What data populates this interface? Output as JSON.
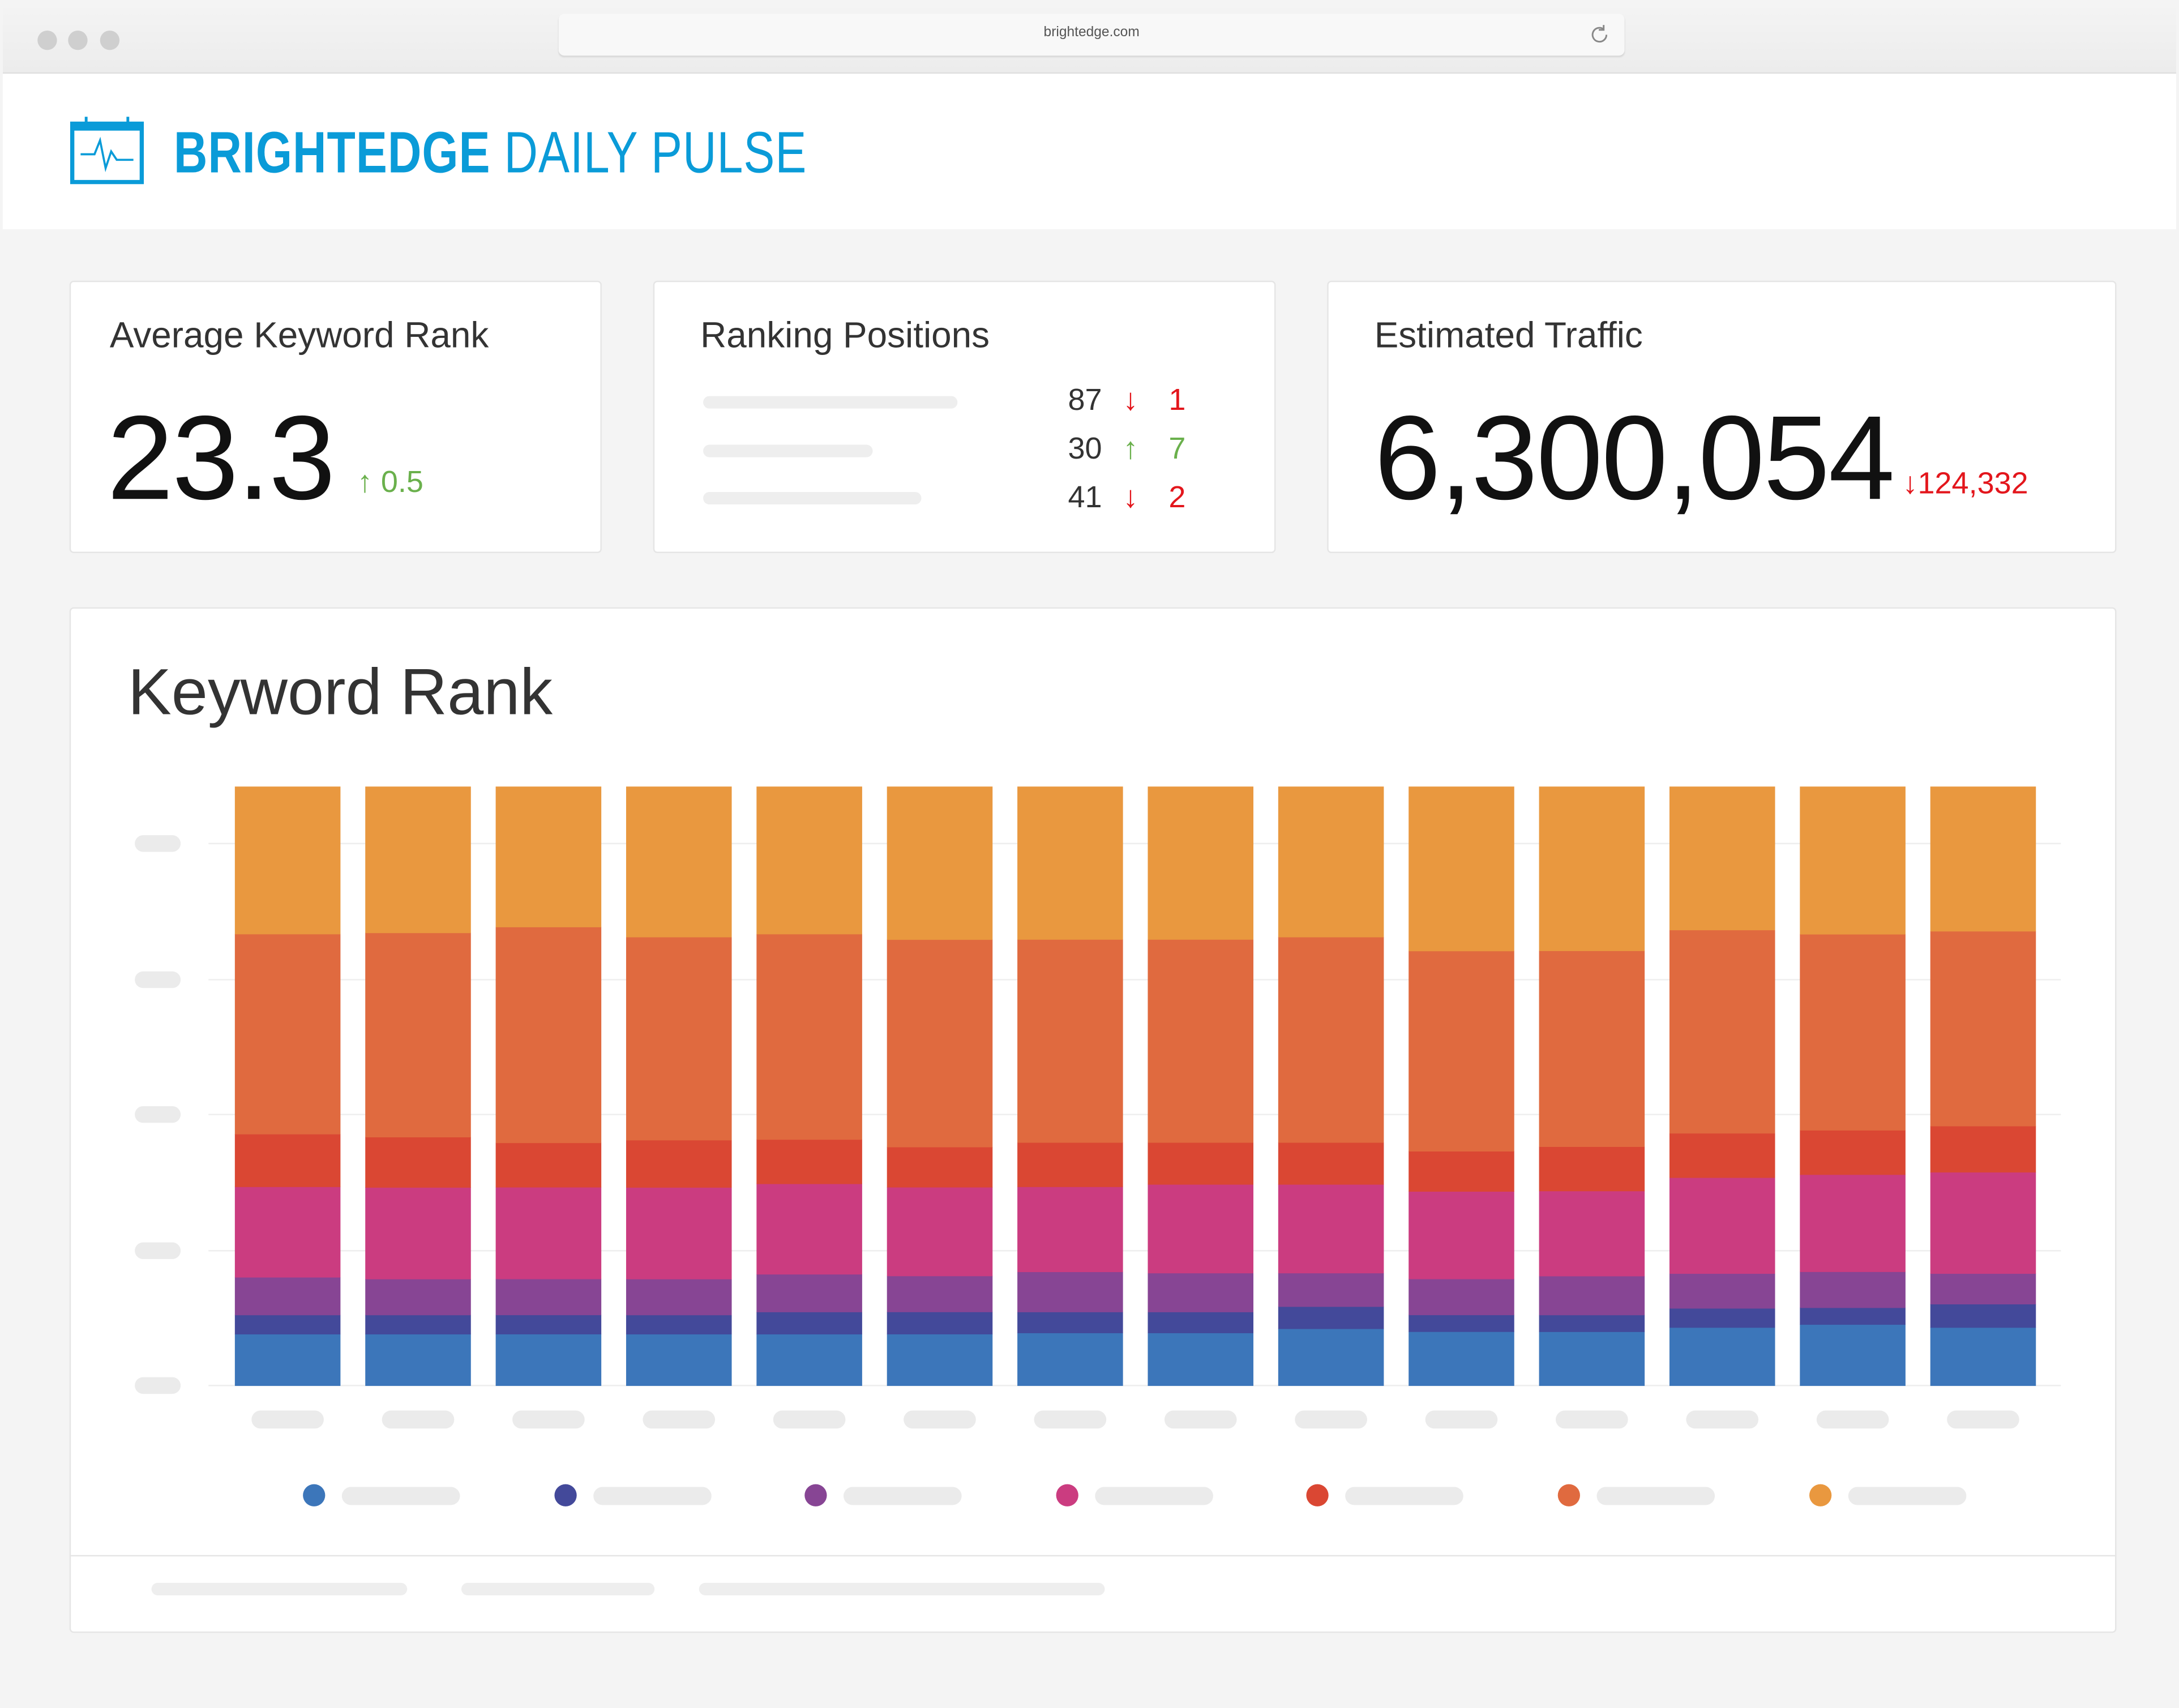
{
  "browser": {
    "url": "brightedge.com",
    "reload_icon": "reload-icon"
  },
  "header": {
    "title_bold": "BRIGHTEDGE",
    "title_light": "DAILY PULSE",
    "logo_icon": "calendar-pulse-icon",
    "brand_color": "#0a9bd8"
  },
  "cards": {
    "avg_rank": {
      "title": "Average Keyword Rank",
      "value": "23.3",
      "delta": "0.5",
      "delta_direction": "up"
    },
    "ranking_positions": {
      "title": "Ranking Positions",
      "rows": [
        {
          "value": "87",
          "delta": "1",
          "direction": "down"
        },
        {
          "value": "30",
          "delta": "7",
          "direction": "up"
        },
        {
          "value": "41",
          "delta": "2",
          "direction": "down"
        }
      ]
    },
    "traffic": {
      "title": "Estimated Traffic",
      "value": "6,300,054",
      "delta": "124,332",
      "delta_direction": "down"
    }
  },
  "status_colors": {
    "up": "#6ab04c",
    "down": "#e3161c"
  },
  "chart_data": {
    "type": "bar",
    "stacked": true,
    "title": "Keyword Rank",
    "grid": true,
    "legend_placement": "bottom",
    "series_colors": [
      "#3c76ba",
      "#43499a",
      "#874594",
      "#cb3c80",
      "#da4733",
      "#e06a3f",
      "#e9983f"
    ],
    "bars": [
      [
        8.6,
        3.2,
        6.3,
        15.1,
        8.8,
        33.4,
        24.6
      ],
      [
        8.6,
        3.2,
        6.0,
        15.3,
        8.4,
        34.1,
        24.4
      ],
      [
        8.6,
        3.2,
        6.0,
        15.3,
        7.4,
        36.0,
        23.4
      ],
      [
        8.6,
        3.2,
        6.0,
        15.3,
        7.9,
        33.9,
        25.1
      ],
      [
        8.6,
        3.7,
        6.3,
        15.1,
        7.4,
        34.3,
        24.6
      ],
      [
        8.6,
        3.7,
        6.0,
        14.8,
        6.7,
        34.6,
        25.5
      ],
      [
        8.8,
        3.5,
        6.7,
        14.2,
        7.4,
        33.9,
        25.5
      ],
      [
        8.8,
        3.5,
        6.5,
        14.8,
        7.0,
        33.9,
        25.5
      ],
      [
        9.5,
        3.7,
        5.6,
        14.8,
        7.0,
        34.3,
        25.1
      ],
      [
        9.0,
        2.8,
        6.0,
        14.6,
        6.7,
        33.4,
        27.4
      ],
      [
        9.0,
        2.8,
        6.5,
        14.2,
        7.4,
        32.7,
        27.4
      ],
      [
        9.7,
        3.2,
        5.8,
        16.0,
        7.4,
        33.9,
        23.9
      ],
      [
        10.2,
        2.8,
        6.0,
        16.2,
        7.4,
        32.7,
        24.6
      ],
      [
        9.7,
        3.9,
        5.1,
        16.9,
        7.7,
        32.5,
        24.1
      ]
    ]
  }
}
